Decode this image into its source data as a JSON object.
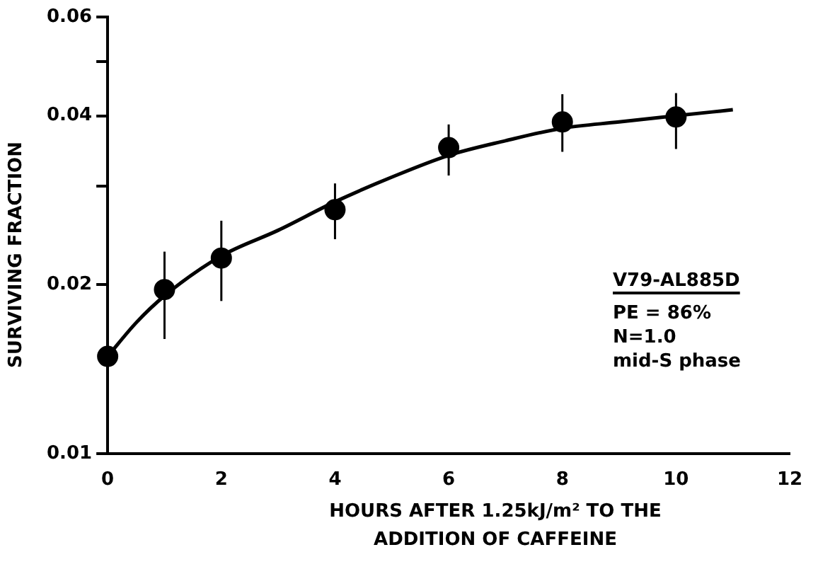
{
  "chart_data": {
    "type": "scatter",
    "xlabel": "HOURS AFTER 1.25kJ/m² TO THE ADDITION OF CAFFEINE",
    "ylabel": "SURVIVING FRACTION",
    "x": [
      0,
      1,
      2,
      4,
      6,
      8,
      10
    ],
    "series": [
      {
        "type": "scatter",
        "color": "#000000",
        "marker": "circle",
        "values": [
          0.0149,
          0.0196,
          0.0223,
          0.0272,
          0.0351,
          0.039,
          0.0398
        ],
        "errors": [
          [
            0.0127,
            0.0164
          ],
          [
            0.016,
            0.0229
          ],
          [
            0.0187,
            0.026
          ],
          [
            0.0241,
            0.0303
          ],
          [
            0.0313,
            0.0386
          ],
          [
            0.0345,
            0.0437
          ],
          [
            0.0349,
            0.0439
          ]
        ]
      },
      {
        "type": "line",
        "color": "#000000",
        "marker": "none",
        "x": [
          0,
          0.5,
          1,
          2,
          3,
          4,
          5,
          6,
          7,
          8,
          9,
          10,
          11
        ],
        "values": [
          0.0149,
          0.0171,
          0.0191,
          0.0225,
          0.025,
          0.0281,
          0.0311,
          0.034,
          0.0361,
          0.038,
          0.039,
          0.04,
          0.041
        ]
      }
    ],
    "log": "y",
    "xlim": [
      0,
      12
    ],
    "xticks": [
      0,
      2,
      4,
      6,
      8,
      10,
      12
    ],
    "ylim": [
      0.01,
      0.06
    ],
    "yticks": [
      {
        "value": 0.01,
        "label": "0.01"
      },
      {
        "value": 0.02,
        "label": "0.02"
      },
      {
        "value": 0.03,
        "label": null
      },
      {
        "value": 0.04,
        "label": "0.04"
      },
      {
        "value": 0.05,
        "label": null
      },
      {
        "value": 0.06,
        "label": "0.06"
      }
    ],
    "grid": false,
    "legend": false,
    "annotations": [
      "V79-AL885D",
      "PE = 86%",
      "N=1.0",
      "mid-S phase"
    ]
  }
}
